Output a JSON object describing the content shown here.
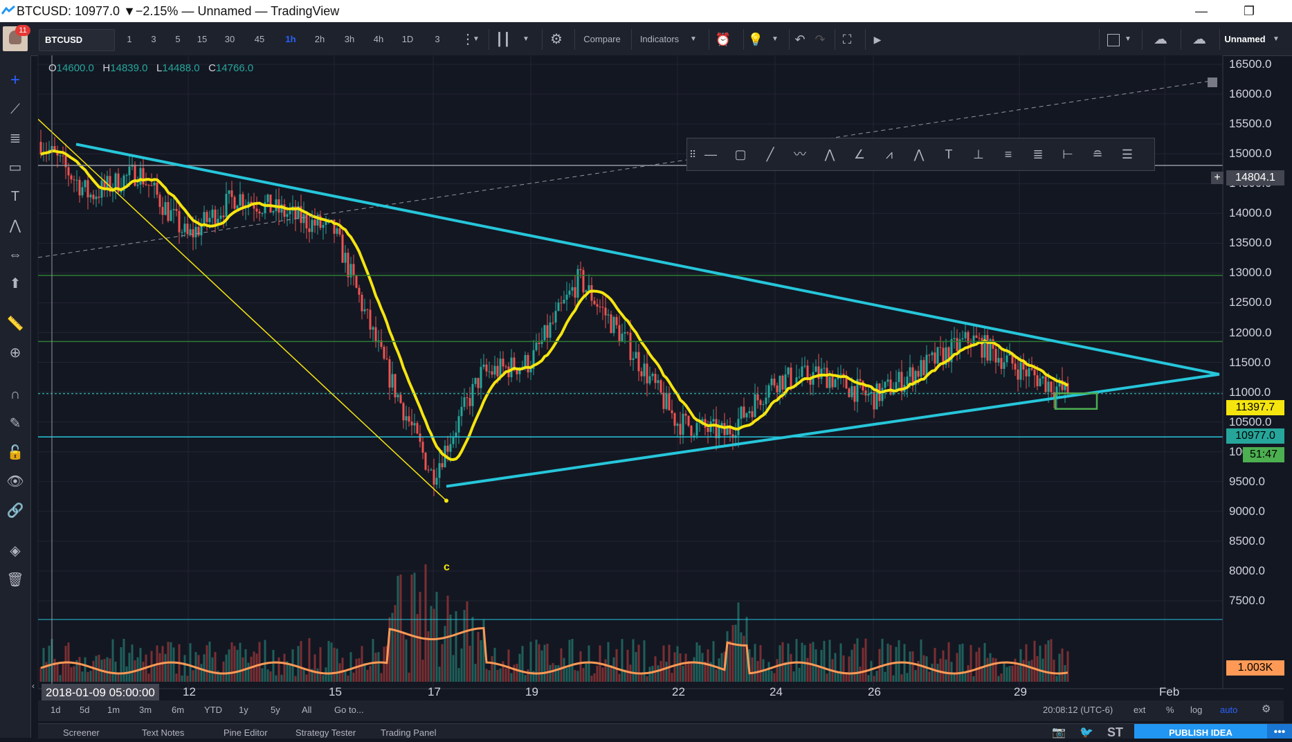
{
  "window": {
    "title": "BTCUSD: 10977.0 ▼−2.15% — Unnamed — TradingView",
    "minimize": "—",
    "restore": "❐"
  },
  "toolbar": {
    "notifications": "11",
    "symbol": "BTCUSD",
    "intervals": [
      "1",
      "3",
      "5",
      "15",
      "30",
      "45",
      "1h",
      "2h",
      "3h",
      "4h",
      "1D",
      "3"
    ],
    "active_interval": "1h",
    "compare": "Compare",
    "indicators": "Indicators",
    "layout_name": "Unnamed"
  },
  "legend": {
    "o_key": "O",
    "o": "14600.0",
    "h_key": "H",
    "h": "14839.0",
    "l_key": "L",
    "l": "14488.0",
    "c_key": "C",
    "c": "14766.0"
  },
  "price_axis": {
    "labels": [
      "16500.0",
      "16000.0",
      "15500.0",
      "15000.0",
      "14500.0",
      "14000.0",
      "13500.0",
      "13000.0",
      "12500.0",
      "12000.0",
      "11500.0",
      "11000.0",
      "10500.0",
      "10000.0",
      "9500.0",
      "9000.0",
      "8500.0",
      "8000.0",
      "7500.0"
    ],
    "crosshair_price": "14804.1",
    "ma_value": "11397.7",
    "last_price": "10977.0",
    "countdown": "51:47",
    "volume_value": "1.003K"
  },
  "time_axis": {
    "crosshair_time": "2018-01-09 05:00:00",
    "labels": [
      "12",
      "15",
      "17",
      "19",
      "22",
      "24",
      "26",
      "29",
      "Feb"
    ]
  },
  "annotation": {
    "wave_label": "c"
  },
  "range_bar": {
    "ranges": [
      "1d",
      "5d",
      "1m",
      "3m",
      "6m",
      "YTD",
      "1y",
      "5y",
      "All"
    ],
    "goto": "Go to...",
    "clock": "20:08:12 (UTC-6)",
    "ext": "ext",
    "percent": "%",
    "log": "log",
    "auto": "auto"
  },
  "panels": {
    "tabs": [
      "Screener",
      "Text Notes",
      "Pine Editor",
      "Strategy Tester",
      "Trading Panel"
    ],
    "publish": "PUBLISH IDEA",
    "st": "ST"
  },
  "chart_data": {
    "type": "candlestick",
    "symbol": "BTCUSD",
    "timeframe": "1h",
    "ylim": [
      7500,
      16700
    ],
    "x_ticks": [
      "12",
      "15",
      "17",
      "19",
      "22",
      "24",
      "26",
      "29",
      "Feb"
    ],
    "price_path": [
      [
        "2018-01-09",
        15200
      ],
      [
        "2018-01-10",
        14300
      ],
      [
        "2018-01-11",
        14700
      ],
      [
        "2018-01-12",
        13600
      ],
      [
        "2018-01-13",
        14300
      ],
      [
        "2018-01-14",
        14000
      ],
      [
        "2018-01-15",
        13700
      ],
      [
        "2018-01-16",
        11500
      ],
      [
        "2018-01-17",
        9600
      ],
      [
        "2018-01-18",
        11300
      ],
      [
        "2018-01-19",
        11500
      ],
      [
        "2018-01-20",
        12900
      ],
      [
        "2018-01-21",
        11800
      ],
      [
        "2018-01-22",
        10500
      ],
      [
        "2018-01-23",
        10300
      ],
      [
        "2018-01-24",
        11200
      ],
      [
        "2018-01-25",
        11300
      ],
      [
        "2018-01-26",
        10900
      ],
      [
        "2018-01-27",
        11400
      ],
      [
        "2018-01-28",
        11900
      ],
      [
        "2018-01-29",
        11400
      ],
      [
        "2018-01-30",
        10977
      ]
    ],
    "moving_average_color": "#f5e50f",
    "trendlines_color": "#26c6da",
    "horizontal_levels": [
      14804.1,
      12960,
      11850,
      10977,
      10250
    ],
    "volume_series_color": "#ff9a56",
    "last_close": 10977.0,
    "ma_last": 11397.7,
    "volume_last": "1.003K"
  },
  "colors": {
    "background": "#131722",
    "up": "#26a69a",
    "down": "#ef5350",
    "ma": "#f5e50f",
    "trendline": "#26c6da",
    "accent": "#2962ff"
  }
}
